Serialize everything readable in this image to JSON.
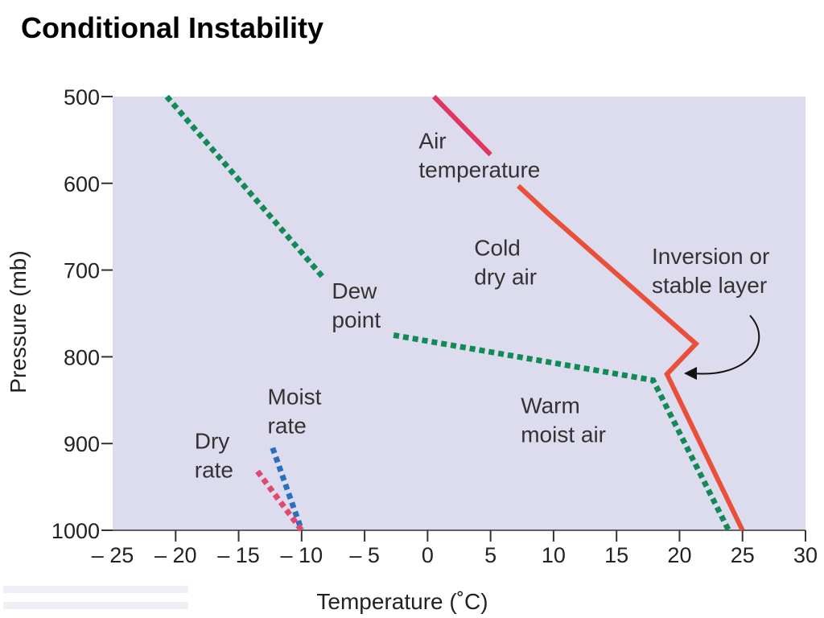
{
  "title": "Conditional Instability",
  "chart_data": {
    "type": "line",
    "xlabel": "Temperature (˚C)",
    "ylabel": "Pressure (mb)",
    "xlim": [
      -25,
      30
    ],
    "ylim": [
      1000,
      500
    ],
    "x_ticks": [
      -25,
      -20,
      -15,
      -10,
      -5,
      0,
      5,
      10,
      15,
      20,
      25,
      30
    ],
    "x_tick_labels": [
      "– 25",
      "– 20",
      "– 15",
      "– 10",
      "– 5",
      "0",
      "5",
      "10",
      "15",
      "20",
      "25",
      "30"
    ],
    "y_ticks": [
      500,
      600,
      700,
      800,
      900,
      1000
    ],
    "y_tick_labels": [
      "500",
      "600",
      "700",
      "800",
      "900",
      "1000"
    ],
    "grid": false,
    "background": "#dcdcee",
    "series": [
      {
        "name": "Air temperature",
        "style": "solid",
        "color": "#e8503a",
        "segments": [
          {
            "color": "#e0365f",
            "points": [
              [
                0.5,
                500
              ],
              [
                5,
                567
              ]
            ]
          },
          {
            "color": "#e8503a",
            "points": [
              [
                7.2,
                603
              ],
              [
                9.5,
                634
              ],
              [
                21.3,
                785
              ],
              [
                19,
                820
              ],
              [
                25,
                1000
              ]
            ]
          }
        ]
      },
      {
        "name": "Dew point",
        "style": "dotted",
        "color": "#128a55",
        "segments": [
          {
            "color": "#128a55",
            "points": [
              [
                -20.7,
                500
              ],
              [
                -8.2,
                710
              ]
            ]
          },
          {
            "color": "#128a55",
            "points": [
              [
                -2.7,
                775
              ],
              [
                17.9,
                827
              ],
              [
                23.9,
                1000
              ]
            ]
          }
        ]
      },
      {
        "name": "Moist rate",
        "style": "dotted",
        "color": "#2c6fbf",
        "segments": [
          {
            "color": "#2c6fbf",
            "points": [
              [
                -12.3,
                905
              ],
              [
                -10,
                1000
              ]
            ]
          }
        ]
      },
      {
        "name": "Dry rate",
        "style": "dotted",
        "color": "#e0486e",
        "segments": [
          {
            "color": "#e0486e",
            "points": [
              [
                -13.5,
                932
              ],
              [
                -10,
                1000
              ]
            ]
          }
        ]
      }
    ],
    "annotations": [
      {
        "lines": [
          "Air",
          "temperature"
        ],
        "x": -0.7,
        "y": 560
      },
      {
        "lines": [
          "Cold",
          "dry air"
        ],
        "x": 3.7,
        "y": 683
      },
      {
        "lines": [
          "Inversion or",
          "stable layer"
        ],
        "x": 17.8,
        "y": 693
      },
      {
        "lines": [
          "Dew",
          "point"
        ],
        "x": -7.6,
        "y": 733
      },
      {
        "lines": [
          "Warm",
          "moist air"
        ],
        "x": 7.4,
        "y": 865
      },
      {
        "lines": [
          "Moist",
          "rate"
        ],
        "x": -12.7,
        "y": 855
      },
      {
        "lines": [
          "Dry",
          "rate"
        ],
        "x": -18.5,
        "y": 906
      }
    ]
  }
}
